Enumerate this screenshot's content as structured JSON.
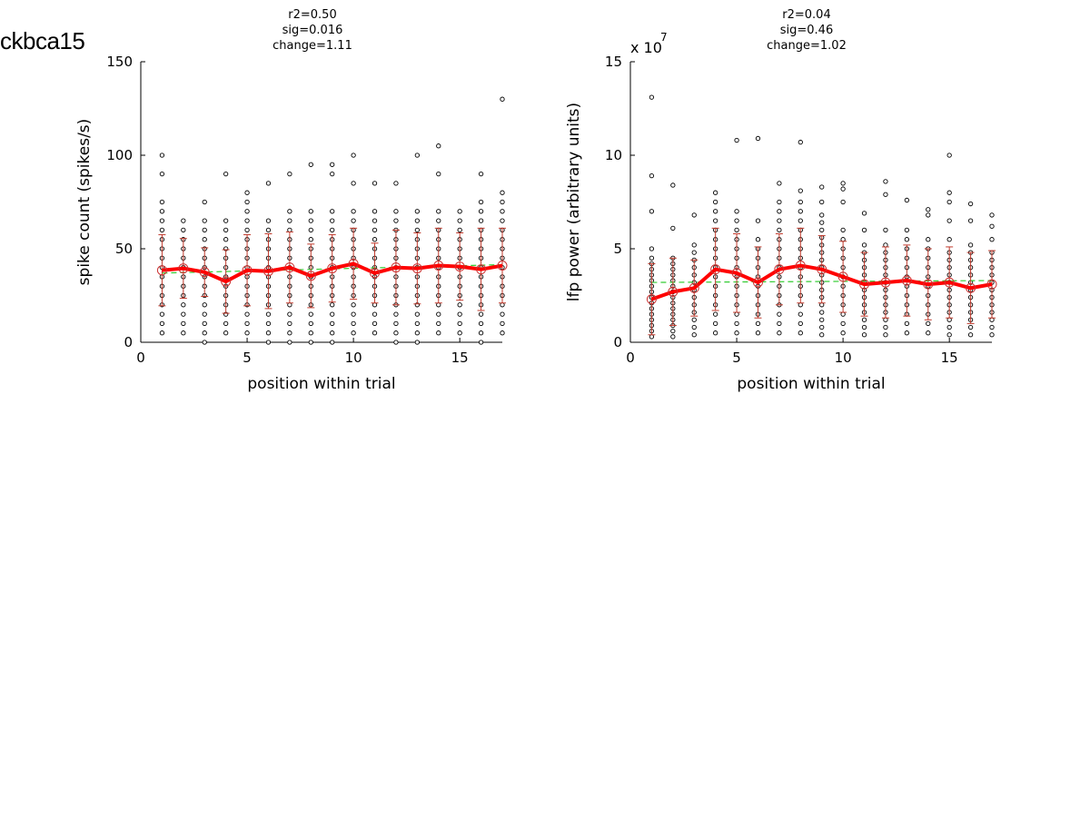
{
  "figure_label": "ckbca15",
  "chart_data": [
    {
      "type": "scatter",
      "title_lines": [
        "r2=0.50",
        "sig=0.016",
        "change=1.11"
      ],
      "xlabel": "position within trial",
      "ylabel": "spike count (spikes/s)",
      "exponent_label": "",
      "xlim": [
        0,
        17
      ],
      "ylim": [
        0,
        150
      ],
      "xticks": [
        0,
        5,
        10,
        15
      ],
      "yticks": [
        0,
        50,
        100,
        150
      ],
      "colors": {
        "points": "#000000",
        "mean_line": "#ff0000",
        "mean_marker": "#cc3333",
        "error_bars": "#c0392b",
        "fit_line": "#33cc33"
      },
      "positions": [
        1,
        2,
        3,
        4,
        5,
        6,
        7,
        8,
        9,
        10,
        11,
        12,
        13,
        14,
        15,
        16,
        17
      ],
      "trial_values": [
        [
          5,
          10,
          15,
          20,
          25,
          30,
          35,
          40,
          45,
          50,
          55,
          60,
          65,
          70,
          75,
          90,
          100
        ],
        [
          5,
          10,
          15,
          20,
          25,
          30,
          35,
          40,
          45,
          50,
          55,
          60,
          65
        ],
        [
          0,
          5,
          10,
          15,
          20,
          25,
          30,
          35,
          40,
          45,
          50,
          55,
          60,
          65,
          75
        ],
        [
          5,
          10,
          15,
          20,
          25,
          30,
          35,
          40,
          45,
          50,
          55,
          60,
          65,
          90
        ],
        [
          5,
          10,
          15,
          20,
          25,
          30,
          35,
          40,
          45,
          50,
          55,
          60,
          65,
          70,
          75,
          80
        ],
        [
          0,
          5,
          10,
          15,
          20,
          25,
          30,
          35,
          40,
          45,
          50,
          55,
          60,
          65,
          85
        ],
        [
          0,
          5,
          10,
          15,
          20,
          25,
          30,
          35,
          40,
          45,
          50,
          55,
          60,
          65,
          70,
          90
        ],
        [
          0,
          5,
          10,
          15,
          20,
          25,
          30,
          35,
          40,
          45,
          50,
          55,
          60,
          65,
          70,
          95
        ],
        [
          0,
          5,
          10,
          15,
          20,
          25,
          30,
          35,
          40,
          45,
          50,
          55,
          60,
          65,
          70,
          90,
          95
        ],
        [
          5,
          10,
          15,
          20,
          25,
          30,
          35,
          40,
          45,
          50,
          55,
          60,
          65,
          70,
          85,
          100
        ],
        [
          5,
          10,
          15,
          20,
          25,
          30,
          35,
          40,
          45,
          50,
          55,
          60,
          65,
          70,
          85
        ],
        [
          0,
          5,
          10,
          15,
          20,
          25,
          30,
          35,
          40,
          45,
          50,
          55,
          60,
          65,
          70,
          85
        ],
        [
          0,
          5,
          10,
          15,
          20,
          25,
          30,
          35,
          40,
          45,
          50,
          55,
          60,
          65,
          70,
          100
        ],
        [
          5,
          10,
          15,
          20,
          25,
          30,
          35,
          40,
          45,
          50,
          55,
          60,
          65,
          70,
          90,
          105
        ],
        [
          5,
          10,
          15,
          20,
          25,
          30,
          35,
          40,
          45,
          50,
          55,
          60,
          65,
          70
        ],
        [
          0,
          5,
          10,
          15,
          20,
          25,
          30,
          35,
          40,
          45,
          50,
          55,
          60,
          65,
          70,
          75,
          90
        ],
        [
          5,
          10,
          15,
          20,
          25,
          30,
          35,
          40,
          45,
          50,
          55,
          60,
          65,
          70,
          75,
          80,
          130
        ]
      ],
      "means": [
        38.5,
        39.5,
        37.5,
        32.5,
        38.5,
        38,
        40,
        35.5,
        39.5,
        42,
        37,
        40,
        39.5,
        41,
        40.5,
        39,
        41
      ],
      "sd": [
        19,
        16,
        13,
        17,
        19,
        20,
        19,
        17,
        18,
        19,
        16,
        20,
        19,
        20,
        18,
        22,
        20
      ],
      "fit": [
        37,
        41.5
      ]
    },
    {
      "type": "scatter",
      "title_lines": [
        "r2=0.04",
        "sig=0.46",
        "change=1.02"
      ],
      "xlabel": "position within trial",
      "ylabel": "lfp power (arbitrary units)",
      "exponent_label": "x 10",
      "exponent_power": "7",
      "xlim": [
        0,
        17
      ],
      "ylim": [
        0,
        15
      ],
      "xticks": [
        0,
        5,
        10,
        15
      ],
      "yticks": [
        0,
        5,
        10,
        15
      ],
      "colors": {
        "points": "#000000",
        "mean_line": "#ff0000",
        "mean_marker": "#cc3333",
        "error_bars": "#c0392b",
        "fit_line": "#33cc33"
      },
      "positions": [
        1,
        2,
        3,
        4,
        5,
        6,
        7,
        8,
        9,
        10,
        11,
        12,
        13,
        14,
        15,
        16,
        17
      ],
      "trial_values": [
        [
          0.3,
          0.6,
          0.9,
          1.2,
          1.5,
          1.8,
          2.1,
          2.4,
          2.7,
          3.0,
          3.3,
          3.6,
          3.9,
          4.2,
          4.5,
          5.0,
          7.0,
          8.9,
          13.1
        ],
        [
          0.3,
          0.6,
          0.9,
          1.2,
          1.5,
          1.8,
          2.1,
          2.4,
          2.7,
          3.0,
          3.3,
          3.6,
          3.9,
          4.2,
          4.5,
          6.1,
          8.4
        ],
        [
          0.4,
          0.8,
          1.2,
          1.6,
          2.0,
          2.4,
          2.8,
          3.2,
          3.6,
          4.0,
          4.4,
          4.8,
          5.2,
          6.8
        ],
        [
          0.5,
          1.0,
          1.5,
          2.0,
          2.5,
          3.0,
          3.5,
          4.0,
          4.5,
          5.0,
          5.5,
          6.0,
          6.5,
          7.0,
          7.5,
          8.0
        ],
        [
          0.5,
          1.0,
          1.5,
          2.0,
          2.5,
          3.0,
          3.5,
          4.0,
          4.5,
          5.0,
          5.5,
          6.0,
          6.5,
          7.0,
          10.8
        ],
        [
          0.5,
          1.0,
          1.5,
          2.0,
          2.5,
          3.0,
          3.5,
          4.0,
          4.5,
          5.0,
          5.5,
          6.5,
          10.9
        ],
        [
          0.5,
          1.0,
          1.5,
          2.0,
          2.5,
          3.0,
          3.5,
          4.0,
          4.5,
          5.0,
          5.5,
          6.0,
          6.5,
          7.0,
          7.5,
          8.5
        ],
        [
          0.5,
          1.0,
          1.5,
          2.0,
          2.5,
          3.0,
          3.5,
          4.0,
          4.5,
          5.0,
          5.5,
          6.0,
          6.5,
          7.0,
          7.5,
          8.1,
          10.7
        ],
        [
          0.4,
          0.8,
          1.2,
          1.6,
          2.0,
          2.4,
          2.8,
          3.2,
          3.6,
          4.0,
          4.4,
          4.8,
          5.2,
          5.6,
          6.0,
          6.4,
          6.8,
          7.5,
          8.3
        ],
        [
          0.5,
          1.0,
          1.5,
          2.0,
          2.5,
          3.0,
          3.5,
          4.0,
          4.5,
          5.0,
          5.5,
          6.0,
          7.5,
          8.2,
          8.5
        ],
        [
          0.4,
          0.8,
          1.2,
          1.6,
          2.0,
          2.4,
          2.8,
          3.2,
          3.6,
          4.0,
          4.4,
          4.8,
          5.2,
          6.0,
          6.9
        ],
        [
          0.4,
          0.8,
          1.2,
          1.6,
          2.0,
          2.4,
          2.8,
          3.2,
          3.6,
          4.0,
          4.4,
          4.8,
          5.2,
          6.0,
          7.9,
          8.6
        ],
        [
          0.5,
          1.0,
          1.5,
          2.0,
          2.5,
          3.0,
          3.5,
          4.0,
          4.5,
          5.0,
          5.5,
          6.0,
          7.6
        ],
        [
          0.5,
          1.0,
          1.5,
          2.0,
          2.5,
          3.0,
          3.5,
          4.0,
          4.5,
          5.0,
          5.5,
          6.8,
          7.1
        ],
        [
          0.4,
          0.8,
          1.2,
          1.6,
          2.0,
          2.4,
          2.8,
          3.2,
          3.6,
          4.0,
          4.4,
          4.8,
          5.5,
          6.5,
          7.5,
          8.0,
          10.0
        ],
        [
          0.4,
          0.8,
          1.2,
          1.6,
          2.0,
          2.4,
          2.8,
          3.2,
          3.6,
          4.0,
          4.4,
          4.8,
          5.2,
          6.5,
          7.4
        ],
        [
          0.4,
          0.8,
          1.2,
          1.6,
          2.0,
          2.4,
          2.8,
          3.2,
          3.6,
          4.0,
          4.4,
          4.8,
          5.5,
          6.2,
          6.8
        ]
      ],
      "means": [
        2.3,
        2.7,
        2.9,
        3.9,
        3.7,
        3.2,
        3.9,
        4.1,
        3.9,
        3.5,
        3.1,
        3.2,
        3.3,
        3.1,
        3.2,
        2.9,
        3.1
      ],
      "sd": [
        1.9,
        1.8,
        1.5,
        2.2,
        2.1,
        1.9,
        1.9,
        2.0,
        1.8,
        1.9,
        1.7,
        1.9,
        1.9,
        1.9,
        1.9,
        1.9,
        1.8
      ],
      "fit": [
        3.2,
        3.3
      ]
    }
  ]
}
